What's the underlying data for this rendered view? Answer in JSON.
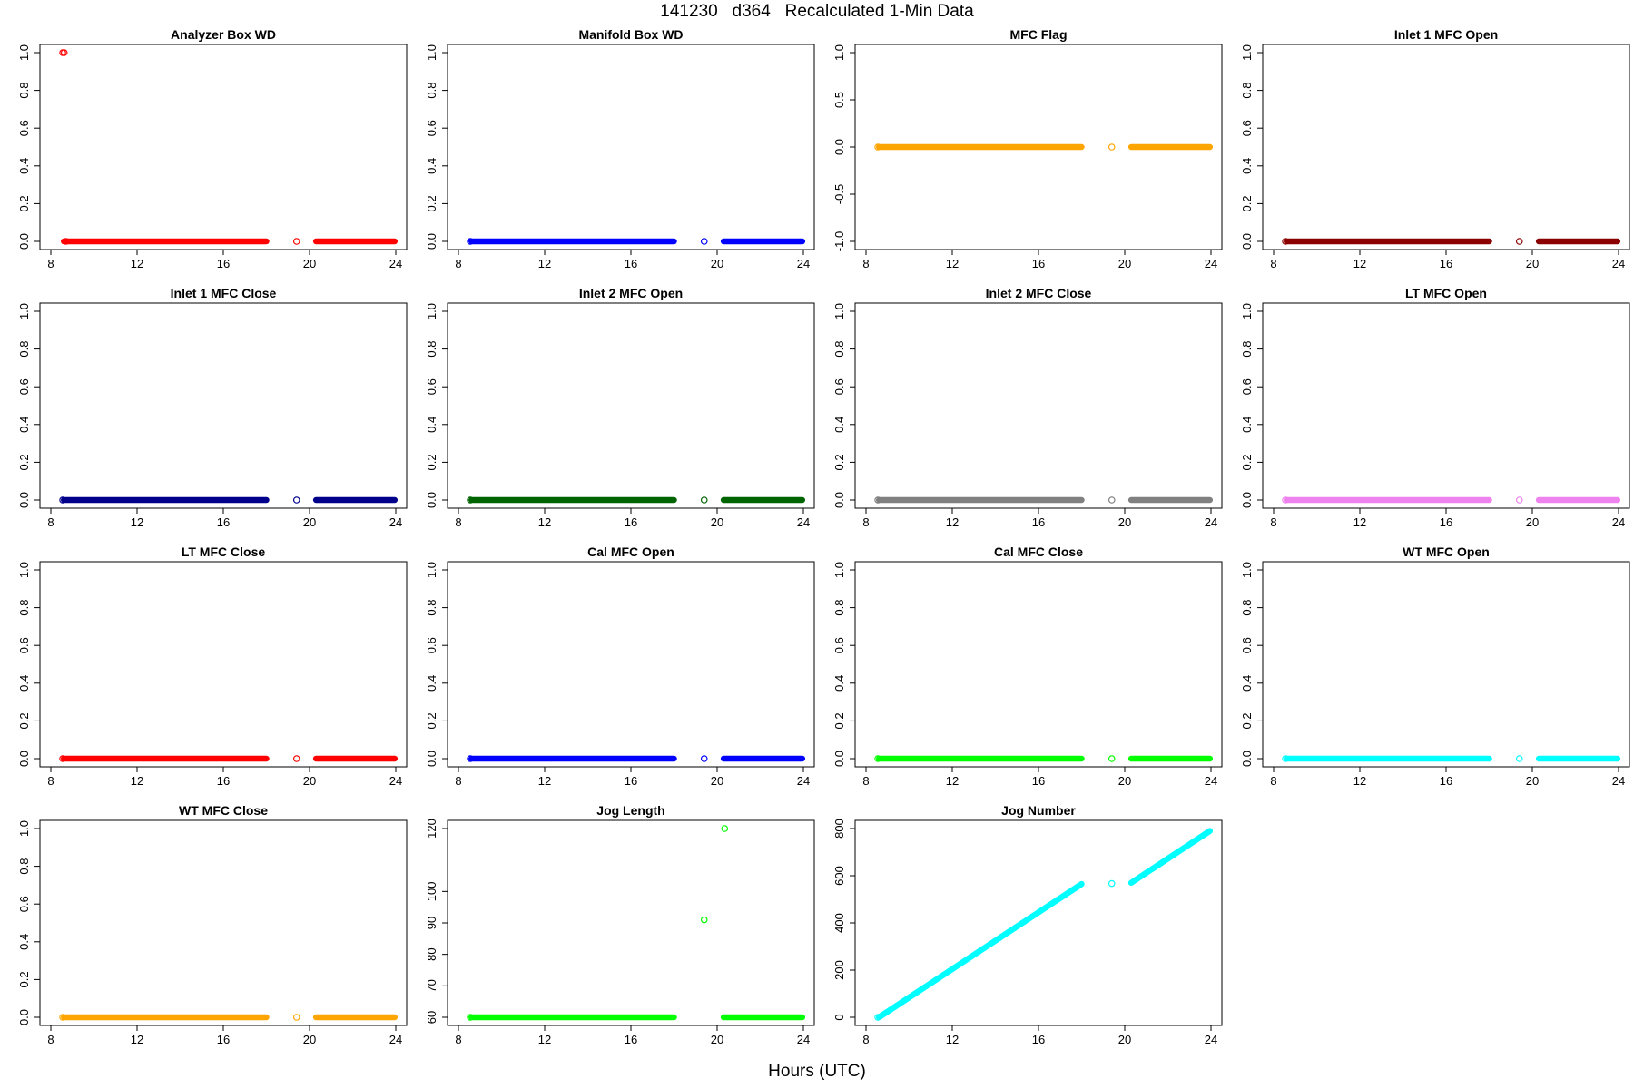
{
  "title": "141230   d364   Recalculated 1-Min Data",
  "xlabel": "Hours (UTC)",
  "chart_data": [
    {
      "type": "scatter",
      "title": "Analyzer Box WD",
      "color": "#ff0000",
      "xlim": [
        8,
        24
      ],
      "xticks": [
        8,
        12,
        16,
        20,
        24
      ],
      "ylim": [
        0,
        1
      ],
      "yticks": [
        0.0,
        0.2,
        0.4,
        0.6,
        0.8,
        1.0
      ],
      "segments": [
        {
          "x0": 8.6,
          "x1": 18.0,
          "y0": 0,
          "y1": 0
        },
        {
          "x0": 20.3,
          "x1": 23.95,
          "y0": 0,
          "y1": 0
        }
      ],
      "points": [
        {
          "x": 8.55,
          "y": 1.0
        },
        {
          "x": 8.62,
          "y": 1.0
        },
        {
          "x": 8.7,
          "y": 0
        },
        {
          "x": 19.4,
          "y": 0
        }
      ]
    },
    {
      "type": "scatter",
      "title": "Manifold Box WD",
      "color": "#0000ff",
      "xlim": [
        8,
        24
      ],
      "xticks": [
        8,
        12,
        16,
        20,
        24
      ],
      "ylim": [
        0,
        1
      ],
      "yticks": [
        0.0,
        0.2,
        0.4,
        0.6,
        0.8,
        1.0
      ],
      "segments": [
        {
          "x0": 8.6,
          "x1": 18.0,
          "y0": 0,
          "y1": 0
        },
        {
          "x0": 20.3,
          "x1": 23.95,
          "y0": 0,
          "y1": 0
        }
      ],
      "points": [
        {
          "x": 8.55,
          "y": 0
        },
        {
          "x": 19.4,
          "y": 0
        }
      ]
    },
    {
      "type": "scatter",
      "title": "MFC Flag",
      "color": "#ffa500",
      "xlim": [
        8,
        24
      ],
      "xticks": [
        8,
        12,
        16,
        20,
        24
      ],
      "ylim": [
        -1,
        1
      ],
      "yticks": [
        -1.0,
        -0.5,
        0.0,
        0.5,
        1.0
      ],
      "segments": [
        {
          "x0": 8.6,
          "x1": 18.0,
          "y0": 0,
          "y1": 0
        },
        {
          "x0": 20.3,
          "x1": 23.95,
          "y0": 0,
          "y1": 0
        }
      ],
      "points": [
        {
          "x": 8.55,
          "y": 0
        },
        {
          "x": 19.4,
          "y": 0
        }
      ]
    },
    {
      "type": "scatter",
      "title": "Inlet 1 MFC Open",
      "color": "#8b0000",
      "xlim": [
        8,
        24
      ],
      "xticks": [
        8,
        12,
        16,
        20,
        24
      ],
      "ylim": [
        0,
        1
      ],
      "yticks": [
        0.0,
        0.2,
        0.4,
        0.6,
        0.8,
        1.0
      ],
      "segments": [
        {
          "x0": 8.6,
          "x1": 18.0,
          "y0": 0,
          "y1": 0
        },
        {
          "x0": 20.3,
          "x1": 23.95,
          "y0": 0,
          "y1": 0
        }
      ],
      "points": [
        {
          "x": 8.55,
          "y": 0
        },
        {
          "x": 19.4,
          "y": 0
        }
      ]
    },
    {
      "type": "scatter",
      "title": "Inlet 1 MFC Close",
      "color": "#00008b",
      "xlim": [
        8,
        24
      ],
      "xticks": [
        8,
        12,
        16,
        20,
        24
      ],
      "ylim": [
        0,
        1
      ],
      "yticks": [
        0.0,
        0.2,
        0.4,
        0.6,
        0.8,
        1.0
      ],
      "segments": [
        {
          "x0": 8.6,
          "x1": 18.0,
          "y0": 0,
          "y1": 0
        },
        {
          "x0": 20.3,
          "x1": 23.95,
          "y0": 0,
          "y1": 0
        }
      ],
      "points": [
        {
          "x": 8.55,
          "y": 0
        },
        {
          "x": 19.4,
          "y": 0
        }
      ]
    },
    {
      "type": "scatter",
      "title": "Inlet 2 MFC Open",
      "color": "#006400",
      "xlim": [
        8,
        24
      ],
      "xticks": [
        8,
        12,
        16,
        20,
        24
      ],
      "ylim": [
        0,
        1
      ],
      "yticks": [
        0.0,
        0.2,
        0.4,
        0.6,
        0.8,
        1.0
      ],
      "segments": [
        {
          "x0": 8.6,
          "x1": 18.0,
          "y0": 0,
          "y1": 0
        },
        {
          "x0": 20.3,
          "x1": 23.95,
          "y0": 0,
          "y1": 0
        }
      ],
      "points": [
        {
          "x": 8.55,
          "y": 0
        },
        {
          "x": 19.4,
          "y": 0
        }
      ]
    },
    {
      "type": "scatter",
      "title": "Inlet 2 MFC Close",
      "color": "#808080",
      "xlim": [
        8,
        24
      ],
      "xticks": [
        8,
        12,
        16,
        20,
        24
      ],
      "ylim": [
        0,
        1
      ],
      "yticks": [
        0.0,
        0.2,
        0.4,
        0.6,
        0.8,
        1.0
      ],
      "segments": [
        {
          "x0": 8.6,
          "x1": 18.0,
          "y0": 0,
          "y1": 0
        },
        {
          "x0": 20.3,
          "x1": 23.95,
          "y0": 0,
          "y1": 0
        }
      ],
      "points": [
        {
          "x": 8.55,
          "y": 0
        },
        {
          "x": 19.4,
          "y": 0
        }
      ]
    },
    {
      "type": "scatter",
      "title": "LT MFC Open",
      "color": "#ee82ee",
      "xlim": [
        8,
        24
      ],
      "xticks": [
        8,
        12,
        16,
        20,
        24
      ],
      "ylim": [
        0,
        1
      ],
      "yticks": [
        0.0,
        0.2,
        0.4,
        0.6,
        0.8,
        1.0
      ],
      "segments": [
        {
          "x0": 8.6,
          "x1": 18.0,
          "y0": 0,
          "y1": 0
        },
        {
          "x0": 20.3,
          "x1": 23.95,
          "y0": 0,
          "y1": 0
        }
      ],
      "points": [
        {
          "x": 8.55,
          "y": 0
        },
        {
          "x": 19.4,
          "y": 0
        }
      ]
    },
    {
      "type": "scatter",
      "title": "LT MFC Close",
      "color": "#ff0000",
      "xlim": [
        8,
        24
      ],
      "xticks": [
        8,
        12,
        16,
        20,
        24
      ],
      "ylim": [
        0,
        1
      ],
      "yticks": [
        0.0,
        0.2,
        0.4,
        0.6,
        0.8,
        1.0
      ],
      "segments": [
        {
          "x0": 8.6,
          "x1": 18.0,
          "y0": 0,
          "y1": 0
        },
        {
          "x0": 20.3,
          "x1": 23.95,
          "y0": 0,
          "y1": 0
        }
      ],
      "points": [
        {
          "x": 8.55,
          "y": 0
        },
        {
          "x": 19.4,
          "y": 0
        }
      ]
    },
    {
      "type": "scatter",
      "title": "Cal MFC Open",
      "color": "#0000ff",
      "xlim": [
        8,
        24
      ],
      "xticks": [
        8,
        12,
        16,
        20,
        24
      ],
      "ylim": [
        0,
        1
      ],
      "yticks": [
        0.0,
        0.2,
        0.4,
        0.6,
        0.8,
        1.0
      ],
      "segments": [
        {
          "x0": 8.6,
          "x1": 18.0,
          "y0": 0,
          "y1": 0
        },
        {
          "x0": 20.3,
          "x1": 23.95,
          "y0": 0,
          "y1": 0
        }
      ],
      "points": [
        {
          "x": 8.55,
          "y": 0
        },
        {
          "x": 19.4,
          "y": 0
        }
      ]
    },
    {
      "type": "scatter",
      "title": "Cal MFC Close",
      "color": "#00ff00",
      "xlim": [
        8,
        24
      ],
      "xticks": [
        8,
        12,
        16,
        20,
        24
      ],
      "ylim": [
        0,
        1
      ],
      "yticks": [
        0.0,
        0.2,
        0.4,
        0.6,
        0.8,
        1.0
      ],
      "segments": [
        {
          "x0": 8.6,
          "x1": 18.0,
          "y0": 0,
          "y1": 0
        },
        {
          "x0": 20.3,
          "x1": 23.95,
          "y0": 0,
          "y1": 0
        }
      ],
      "points": [
        {
          "x": 8.55,
          "y": 0
        },
        {
          "x": 19.4,
          "y": 0
        }
      ]
    },
    {
      "type": "scatter",
      "title": "WT MFC Open",
      "color": "#00ffff",
      "xlim": [
        8,
        24
      ],
      "xticks": [
        8,
        12,
        16,
        20,
        24
      ],
      "ylim": [
        0,
        1
      ],
      "yticks": [
        0.0,
        0.2,
        0.4,
        0.6,
        0.8,
        1.0
      ],
      "segments": [
        {
          "x0": 8.6,
          "x1": 18.0,
          "y0": 0,
          "y1": 0
        },
        {
          "x0": 20.3,
          "x1": 23.95,
          "y0": 0,
          "y1": 0
        }
      ],
      "points": [
        {
          "x": 8.55,
          "y": 0
        },
        {
          "x": 19.4,
          "y": 0
        }
      ]
    },
    {
      "type": "scatter",
      "title": "WT MFC Close",
      "color": "#ffa500",
      "xlim": [
        8,
        24
      ],
      "xticks": [
        8,
        12,
        16,
        20,
        24
      ],
      "ylim": [
        0,
        1
      ],
      "yticks": [
        0.0,
        0.2,
        0.4,
        0.6,
        0.8,
        1.0
      ],
      "segments": [
        {
          "x0": 8.6,
          "x1": 18.0,
          "y0": 0,
          "y1": 0
        },
        {
          "x0": 20.3,
          "x1": 23.95,
          "y0": 0,
          "y1": 0
        }
      ],
      "points": [
        {
          "x": 8.55,
          "y": 0
        },
        {
          "x": 19.4,
          "y": 0
        }
      ]
    },
    {
      "type": "scatter",
      "title": "Jog Length",
      "color": "#00ff00",
      "xlim": [
        8,
        24
      ],
      "xticks": [
        8,
        12,
        16,
        20,
        24
      ],
      "ylim": [
        60,
        120
      ],
      "yticks": [
        60,
        70,
        80,
        90,
        100,
        120
      ],
      "segments": [
        {
          "x0": 8.6,
          "x1": 18.0,
          "y0": 60,
          "y1": 60
        },
        {
          "x0": 20.3,
          "x1": 23.95,
          "y0": 60,
          "y1": 60
        }
      ],
      "points": [
        {
          "x": 8.55,
          "y": 60
        },
        {
          "x": 19.4,
          "y": 91
        },
        {
          "x": 20.35,
          "y": 120
        }
      ]
    },
    {
      "type": "scatter",
      "title": "Jog Number",
      "color": "#00ffff",
      "xlim": [
        8,
        24
      ],
      "xticks": [
        8,
        12,
        16,
        20,
        24
      ],
      "ylim": [
        0,
        800
      ],
      "yticks": [
        0,
        200,
        400,
        600,
        800
      ],
      "segments": [
        {
          "x0": 8.6,
          "x1": 18.0,
          "y0": 0,
          "y1": 565
        },
        {
          "x0": 20.3,
          "x1": 23.95,
          "y0": 570,
          "y1": 790
        }
      ],
      "points": [
        {
          "x": 8.55,
          "y": 0
        },
        {
          "x": 19.4,
          "y": 567
        }
      ]
    }
  ]
}
